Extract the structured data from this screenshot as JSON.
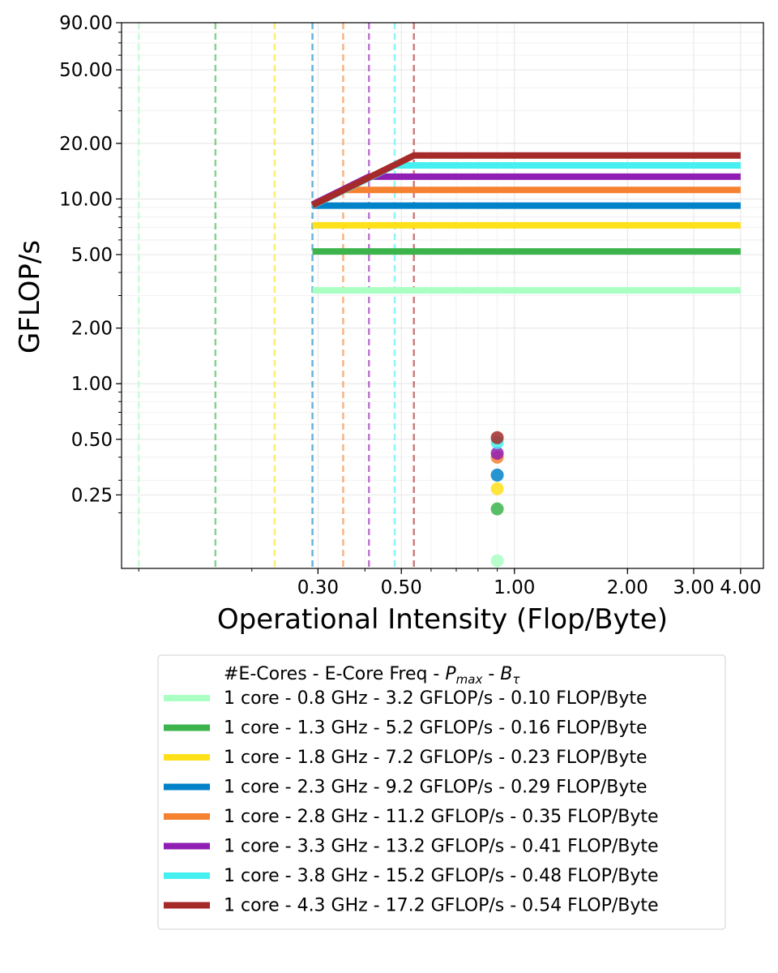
{
  "chart_data": {
    "type": "line",
    "title": "",
    "xlabel": "Operational Intensity (Flop/Byte)",
    "ylabel": "GFLOP/s",
    "xscale": "log",
    "yscale": "log",
    "xlim": [
      0.09,
      4.6
    ],
    "ylim": [
      0.1,
      90
    ],
    "grid": true,
    "legend_placement": "bottom-center",
    "x_ticks": [
      {
        "value": 0.3,
        "label": "0.30"
      },
      {
        "value": 0.5,
        "label": "0.50"
      },
      {
        "value": 1,
        "label": "1.00"
      },
      {
        "value": 2,
        "label": "2.00"
      },
      {
        "value": 3,
        "label": "3.00"
      },
      {
        "value": 4,
        "label": "4.00"
      }
    ],
    "y_ticks": [
      {
        "value": 0.25,
        "label": "0.25"
      },
      {
        "value": 0.5,
        "label": "0.50"
      },
      {
        "value": 1,
        "label": "1.00"
      },
      {
        "value": 2,
        "label": "2.00"
      },
      {
        "value": 5,
        "label": "5.00"
      },
      {
        "value": 10,
        "label": "10.00"
      },
      {
        "value": 20,
        "label": "20.00"
      },
      {
        "value": 50,
        "label": "50.00"
      },
      {
        "value": 90,
        "label": "90.00"
      }
    ],
    "legend_title": "#E-Cores - E-Core Freq - ",
    "legend_title_pmax": "P",
    "legend_title_pmax_sub": "max",
    "legend_title_sep": " - ",
    "legend_title_btau": "B",
    "legend_title_btau_sub": "τ",
    "roofline_x_start": 0.29,
    "roofline_x_end": 4.0,
    "measured_x": 0.9,
    "series": [
      {
        "name": "1 core - 0.8 GHz - 3.2 GFLOP/s - 0.10 FLOP/Byte",
        "color": "#aaffc3",
        "pmax": 3.2,
        "ridge": 0.1,
        "measured": 0.11
      },
      {
        "name": "1 core - 1.3 GHz - 5.2 GFLOP/s - 0.16 FLOP/Byte",
        "color": "#3cb44b",
        "pmax": 5.2,
        "ridge": 0.16,
        "measured": 0.21
      },
      {
        "name": "1 core - 1.8 GHz - 7.2 GFLOP/s - 0.23 FLOP/Byte",
        "color": "#ffe119",
        "pmax": 7.2,
        "ridge": 0.23,
        "measured": 0.27
      },
      {
        "name": "1 core - 2.3 GHz - 9.2 GFLOP/s - 0.29 FLOP/Byte",
        "color": "#0082c8",
        "pmax": 9.2,
        "ridge": 0.29,
        "measured": 0.32
      },
      {
        "name": "1 core - 2.8 GHz - 11.2 GFLOP/s - 0.35 FLOP/Byte",
        "color": "#f58231",
        "pmax": 11.2,
        "ridge": 0.35,
        "measured": 0.4
      },
      {
        "name": "1 core - 3.3 GHz - 13.2 GFLOP/s - 0.41 FLOP/Byte",
        "color": "#911eb4",
        "pmax": 13.2,
        "ridge": 0.41,
        "measured": 0.42
      },
      {
        "name": "1 core - 3.8 GHz - 15.2 GFLOP/s - 0.48 FLOP/Byte",
        "color": "#46f0f0",
        "pmax": 15.2,
        "ridge": 0.48,
        "measured": 0.48
      },
      {
        "name": "1 core - 4.3 GHz - 17.2 GFLOP/s - 0.54 FLOP/Byte",
        "color": "#a52a2a",
        "pmax": 17.2,
        "ridge": 0.54,
        "measured": 0.51
      }
    ]
  }
}
